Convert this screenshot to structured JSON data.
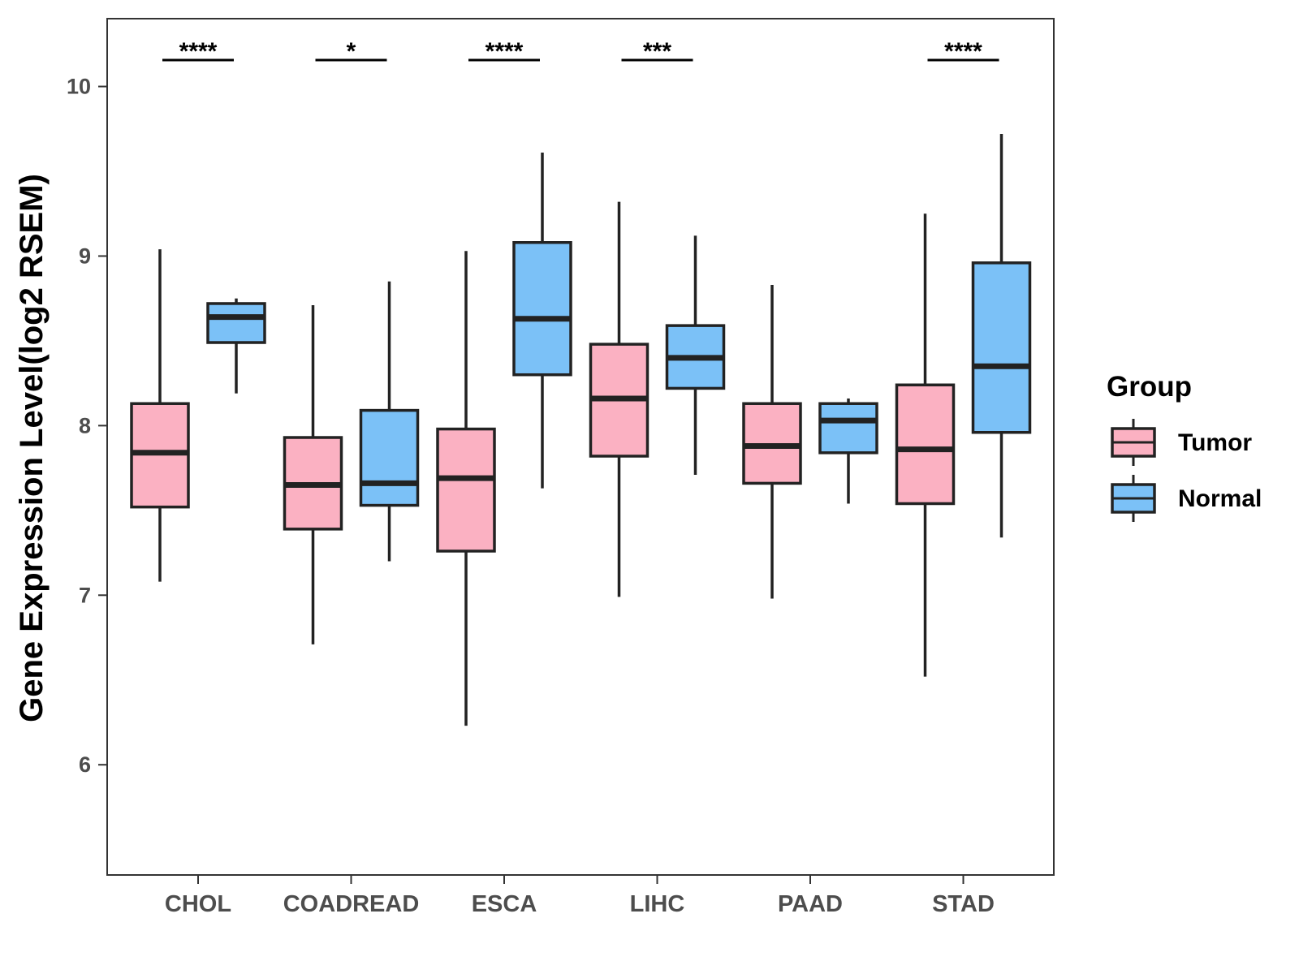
{
  "chart_data": {
    "type": "boxplot",
    "title": "",
    "xlabel": "",
    "ylabel": "Gene Expression Level(log2 RSEM)",
    "ylim": [
      5.35,
      10.4
    ],
    "yticks": [
      6,
      7,
      8,
      9,
      10
    ],
    "categories": [
      "CHOL",
      "COADREAD",
      "ESCA",
      "LIHC",
      "PAAD",
      "STAD"
    ],
    "legend": {
      "title": "Group",
      "position": "right",
      "entries": [
        {
          "label": "Tumor",
          "color": "#fbb1c2"
        },
        {
          "label": "Normal",
          "color": "#7bc1f7"
        }
      ]
    },
    "series": [
      {
        "name": "Tumor",
        "color": "#fbb1c2",
        "boxes": [
          {
            "category": "CHOL",
            "min": 7.08,
            "q1": 7.52,
            "median": 7.84,
            "q3": 8.13,
            "max": 9.04
          },
          {
            "category": "COADREAD",
            "min": 6.71,
            "q1": 7.39,
            "median": 7.65,
            "q3": 7.93,
            "max": 8.71
          },
          {
            "category": "ESCA",
            "min": 6.23,
            "q1": 7.26,
            "median": 7.69,
            "q3": 7.98,
            "max": 9.03
          },
          {
            "category": "LIHC",
            "min": 6.99,
            "q1": 7.82,
            "median": 8.16,
            "q3": 8.48,
            "max": 9.32
          },
          {
            "category": "PAAD",
            "min": 6.98,
            "q1": 7.66,
            "median": 7.88,
            "q3": 8.13,
            "max": 8.83
          },
          {
            "category": "STAD",
            "min": 6.52,
            "q1": 7.54,
            "median": 7.86,
            "q3": 8.24,
            "max": 9.25
          }
        ]
      },
      {
        "name": "Normal",
        "color": "#7bc1f7",
        "boxes": [
          {
            "category": "CHOL",
            "min": 8.19,
            "q1": 8.49,
            "median": 8.64,
            "q3": 8.72,
            "max": 8.75
          },
          {
            "category": "COADREAD",
            "min": 7.2,
            "q1": 7.53,
            "median": 7.66,
            "q3": 8.09,
            "max": 8.85
          },
          {
            "category": "ESCA",
            "min": 7.63,
            "q1": 8.3,
            "median": 8.63,
            "q3": 9.08,
            "max": 9.61
          },
          {
            "category": "LIHC",
            "min": 7.71,
            "q1": 8.22,
            "median": 8.4,
            "q3": 8.59,
            "max": 9.12
          },
          {
            "category": "PAAD",
            "min": 7.54,
            "q1": 7.84,
            "median": 8.03,
            "q3": 8.13,
            "max": 8.16
          },
          {
            "category": "STAD",
            "min": 7.34,
            "q1": 7.96,
            "median": 8.35,
            "q3": 8.96,
            "max": 9.72
          }
        ]
      }
    ],
    "significance": [
      {
        "category": "CHOL",
        "label": "****"
      },
      {
        "category": "COADREAD",
        "label": "*"
      },
      {
        "category": "ESCA",
        "label": "****"
      },
      {
        "category": "LIHC",
        "label": "***"
      },
      {
        "category": "PAAD",
        "label": ""
      },
      {
        "category": "STAD",
        "label": "****"
      }
    ]
  }
}
